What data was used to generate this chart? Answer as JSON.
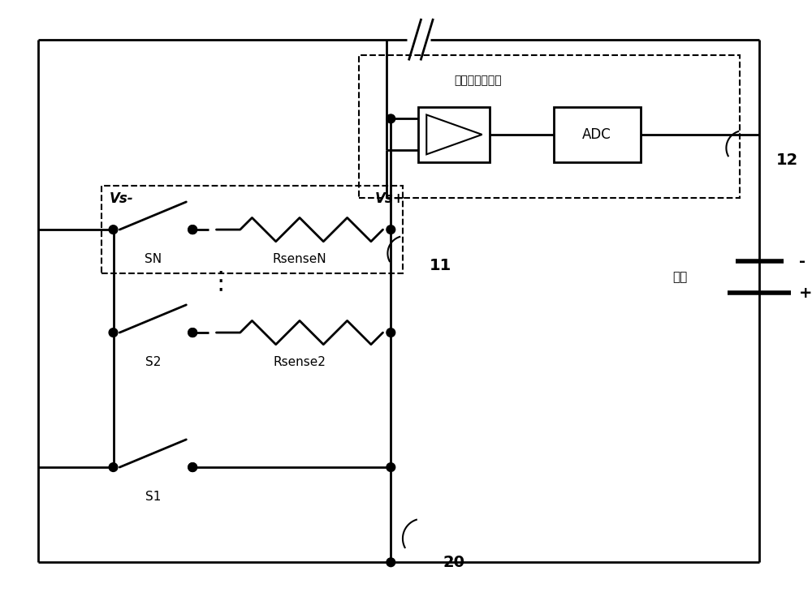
{
  "bg_color": "#ffffff",
  "line_color": "#000000",
  "lw": 2.0,
  "dlw": 1.5,
  "vs_minus": "Vs-",
  "vs_plus": "Vs+",
  "SN": "SN",
  "RsenseN": "RsenseN",
  "S2": "S2",
  "Rsense2": "Rsense2",
  "S1": "S1",
  "amp_label": "增益可控放大器",
  "ADC": "ADC",
  "bat_label": "电池",
  "lbl_11": "11",
  "lbl_12": "12",
  "lbl_20": "20"
}
